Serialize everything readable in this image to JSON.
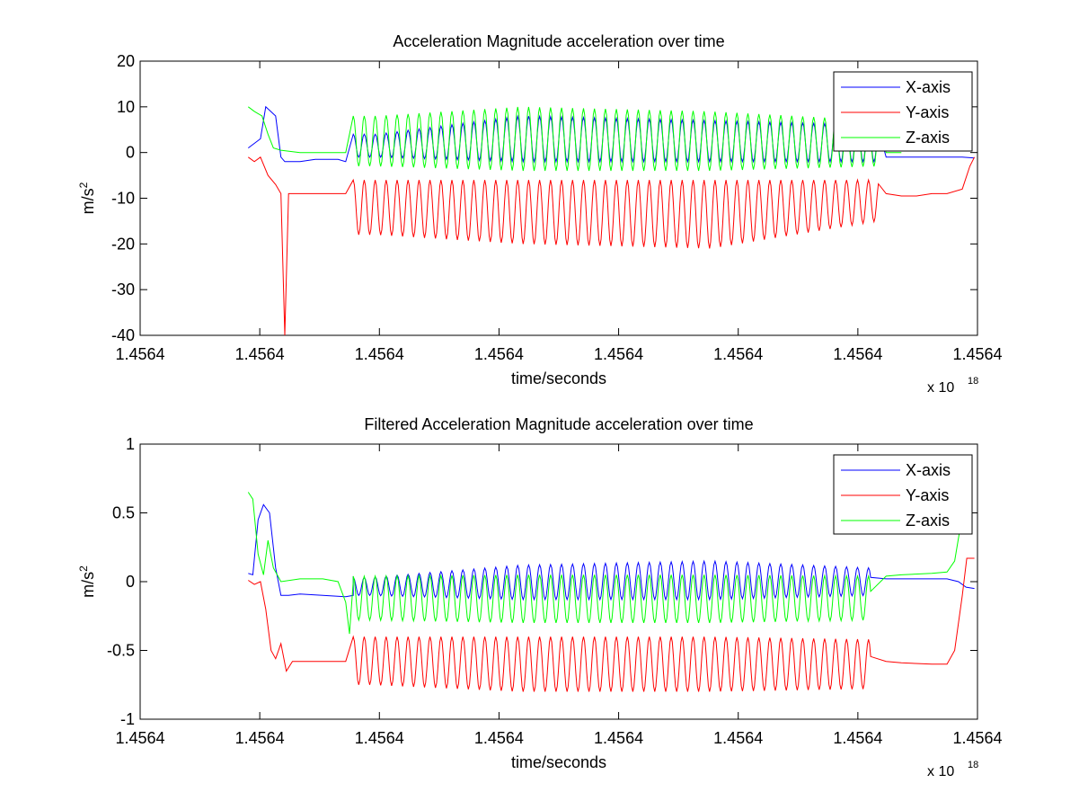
{
  "chart_data": [
    {
      "type": "line",
      "title": "Acceleration Magnitude acceleration over time",
      "xlabel": "time/seconds",
      "ylabel": "m/s",
      "ylabel_sup": "2",
      "x_multiplier_base": "x 10",
      "x_multiplier_exp": "18",
      "xlim": [
        0,
        1
      ],
      "ylim": [
        -40,
        20
      ],
      "yticks": [
        "20",
        "10",
        "0",
        "-10",
        "-20",
        "-30",
        "-40"
      ],
      "xticks": [
        "1.4564",
        "1.4564",
        "1.4564",
        "1.4564",
        "1.4564",
        "1.4564",
        "1.4564",
        "1.4564"
      ],
      "grid": false,
      "legend_position": "top-right",
      "series": [
        {
          "name": "X-axis",
          "color": "#0000ff",
          "points": [
            [
              0.142,
              1
            ],
            [
              0.158,
              3
            ],
            [
              0.165,
              10
            ],
            [
              0.178,
              8
            ],
            [
              0.185,
              -1
            ],
            [
              0.19,
              -2
            ],
            [
              0.21,
              -2
            ],
            [
              0.23,
              -1.5
            ],
            [
              0.26,
              -1.5
            ],
            [
              0.27,
              -2
            ]
          ],
          "period": 0.0144,
          "ref": 0.28,
          "cycles": [
            {
              "x": 0.31,
              "min": -1,
              "max": 4
            },
            {
              "x": 0.5,
              "min": -2,
              "max": 8
            },
            {
              "x": 0.75,
              "min": -2,
              "max": 7
            },
            {
              "x": 0.97,
              "min": -2,
              "max": 6
            }
          ],
          "tail": [
            [
              0.98,
              -1
            ],
            [
              1.0,
              -1
            ],
            [
              1.03,
              -1
            ],
            [
              1.05,
              -1
            ],
            [
              1.08,
              -1
            ],
            [
              1.096,
              -1.2
            ]
          ]
        },
        {
          "name": "Y-axis",
          "color": "#ff0000",
          "points": [
            [
              0.142,
              -1
            ],
            [
              0.15,
              -2
            ],
            [
              0.158,
              -1
            ],
            [
              0.168,
              -5
            ],
            [
              0.178,
              -7
            ],
            [
              0.185,
              -9
            ],
            [
              0.19,
              -40
            ],
            [
              0.195,
              -9
            ],
            [
              0.21,
              -9
            ],
            [
              0.24,
              -9
            ],
            [
              0.27,
              -9
            ]
          ],
          "period": 0.0144,
          "ref": 0.28,
          "cycles": [
            {
              "x": 0.31,
              "min": -18,
              "max": -6
            },
            {
              "x": 0.5,
              "min": -20,
              "max": -6
            },
            {
              "x": 0.75,
              "min": -21,
              "max": -6
            },
            {
              "x": 0.97,
              "min": -15,
              "max": -6
            }
          ],
          "tail": [
            [
              0.98,
              -9
            ],
            [
              1.0,
              -9.5
            ],
            [
              1.02,
              -9.5
            ],
            [
              1.04,
              -9
            ],
            [
              1.06,
              -9
            ],
            [
              1.08,
              -8
            ],
            [
              1.09,
              -3
            ],
            [
              1.096,
              -1
            ]
          ]
        },
        {
          "name": "Z-axis",
          "color": "#00ff00",
          "points": [
            [
              0.142,
              10
            ],
            [
              0.15,
              9
            ],
            [
              0.16,
              8
            ],
            [
              0.168,
              4
            ],
            [
              0.175,
              1
            ],
            [
              0.185,
              0.5
            ],
            [
              0.21,
              0
            ],
            [
              0.24,
              0
            ],
            [
              0.27,
              0
            ]
          ],
          "period": 0.0144,
          "ref": 0.28,
          "cycles": [
            {
              "x": 0.31,
              "min": -3,
              "max": 8
            },
            {
              "x": 0.5,
              "min": -4,
              "max": 10
            },
            {
              "x": 0.75,
              "min": -4,
              "max": 9
            },
            {
              "x": 0.97,
              "min": -3,
              "max": 7
            }
          ],
          "tail": [
            [
              0.98,
              0
            ],
            [
              1.0,
              0
            ]
          ]
        }
      ]
    },
    {
      "type": "line",
      "title": "Filtered Acceleration Magnitude acceleration over time",
      "xlabel": "time/seconds",
      "ylabel": "m/s",
      "ylabel_sup": "2",
      "x_multiplier_base": "x 10",
      "x_multiplier_exp": "18",
      "xlim": [
        0,
        1
      ],
      "ylim": [
        -1,
        1
      ],
      "yticks": [
        "1",
        "0.5",
        "0",
        "-0.5",
        "-1"
      ],
      "xticks": [
        "1.4564",
        "1.4564",
        "1.4564",
        "1.4564",
        "1.4564",
        "1.4564",
        "1.4564",
        "1.4564"
      ],
      "grid": false,
      "legend_position": "top-right",
      "series": [
        {
          "name": "X-axis",
          "color": "#0000ff",
          "points": [
            [
              0.142,
              0.06
            ],
            [
              0.148,
              0.05
            ],
            [
              0.155,
              0.45
            ],
            [
              0.162,
              0.56
            ],
            [
              0.17,
              0.5
            ],
            [
              0.178,
              0.1
            ],
            [
              0.185,
              -0.1
            ],
            [
              0.195,
              -0.1
            ],
            [
              0.21,
              -0.09
            ],
            [
              0.24,
              -0.1
            ],
            [
              0.27,
              -0.11
            ],
            [
              0.28,
              -0.1
            ]
          ],
          "period": 0.0144,
          "ref": 0.28,
          "cycles": [
            {
              "x": 0.3,
              "min": -0.1,
              "max": 0.03
            },
            {
              "x": 0.5,
              "min": -0.13,
              "max": 0.12
            },
            {
              "x": 0.75,
              "min": -0.13,
              "max": 0.15
            },
            {
              "x": 0.96,
              "min": -0.1,
              "max": 0.1
            }
          ],
          "tail": [
            [
              0.98,
              0.02
            ],
            [
              1.0,
              0.02
            ],
            [
              1.04,
              0.02
            ],
            [
              1.06,
              0.02
            ],
            [
              1.075,
              0
            ],
            [
              1.085,
              -0.04
            ],
            [
              1.096,
              -0.05
            ]
          ]
        },
        {
          "name": "Y-axis",
          "color": "#ff0000",
          "points": [
            [
              0.142,
              0.01
            ],
            [
              0.15,
              -0.02
            ],
            [
              0.158,
              0.0
            ],
            [
              0.165,
              -0.2
            ],
            [
              0.172,
              -0.5
            ],
            [
              0.178,
              -0.56
            ],
            [
              0.185,
              -0.45
            ],
            [
              0.192,
              -0.65
            ],
            [
              0.2,
              -0.58
            ],
            [
              0.22,
              -0.58
            ],
            [
              0.25,
              -0.58
            ],
            [
              0.27,
              -0.58
            ]
          ],
          "period": 0.0144,
          "ref": 0.28,
          "cycles": [
            {
              "x": 0.3,
              "min": -0.75,
              "max": -0.4
            },
            {
              "x": 0.5,
              "min": -0.8,
              "max": -0.4
            },
            {
              "x": 0.75,
              "min": -0.8,
              "max": -0.4
            },
            {
              "x": 0.96,
              "min": -0.78,
              "max": -0.42
            }
          ],
          "tail": [
            [
              0.98,
              -0.58
            ],
            [
              1.0,
              -0.59
            ],
            [
              1.04,
              -0.6
            ],
            [
              1.06,
              -0.6
            ],
            [
              1.07,
              -0.5
            ],
            [
              1.08,
              -0.1
            ],
            [
              1.086,
              0.17
            ],
            [
              1.096,
              0.17
            ]
          ]
        },
        {
          "name": "Z-axis",
          "color": "#00ff00",
          "points": [
            [
              0.142,
              0.65
            ],
            [
              0.148,
              0.6
            ],
            [
              0.155,
              0.2
            ],
            [
              0.162,
              0.05
            ],
            [
              0.168,
              0.3
            ],
            [
              0.175,
              0.1
            ],
            [
              0.185,
              0.0
            ],
            [
              0.21,
              0.02
            ],
            [
              0.24,
              0.02
            ],
            [
              0.26,
              0.0
            ],
            [
              0.27,
              -0.15
            ],
            [
              0.275,
              -0.38
            ],
            [
              0.28,
              0.0
            ]
          ],
          "period": 0.0144,
          "ref": 0.28,
          "cycles": [
            {
              "x": 0.3,
              "min": -0.28,
              "max": 0.04
            },
            {
              "x": 0.5,
              "min": -0.3,
              "max": 0.05
            },
            {
              "x": 0.75,
              "min": -0.3,
              "max": 0.05
            },
            {
              "x": 0.96,
              "min": -0.28,
              "max": 0.04
            }
          ],
          "tail": [
            [
              0.98,
              0.04
            ],
            [
              1.0,
              0.05
            ],
            [
              1.04,
              0.06
            ],
            [
              1.06,
              0.07
            ],
            [
              1.07,
              0.15
            ],
            [
              1.076,
              0.35
            ],
            [
              1.08,
              0.55
            ]
          ]
        }
      ]
    }
  ]
}
